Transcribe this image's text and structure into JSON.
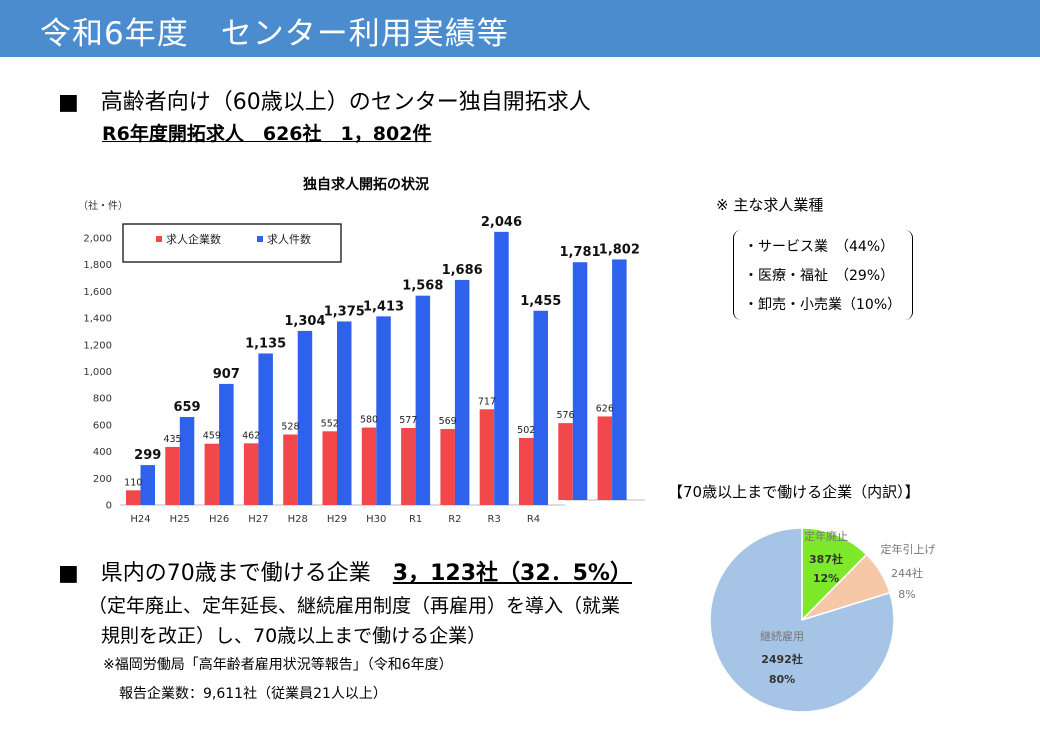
{
  "header": {
    "title": "令和6年度　センター利用実績等"
  },
  "section1": {
    "heading": "■　高齢者向け（60歳以上）のセンター独自開拓求人",
    "subheading": "R6年度開拓求人　626社　1，802件"
  },
  "industries": {
    "title": "※ 主な求人業種",
    "items": [
      "・サービス業　（44%）",
      "・医療・福祉　（29%）",
      "・卸売・小売業（10%）"
    ]
  },
  "section2": {
    "heading_prefix": "■　県内の70歳まで働ける企業　",
    "heading_value": "3，123社（32．5%）",
    "desc_line1": "（定年廃止、定年延長、継続雇用制度（再雇用）を導入（就業",
    "desc_line2": "規則を改正）し、70歳以上まで働ける企業）",
    "note_line1": "※福岡労働局「高年齢者雇用状況等報告」（令和6年度）",
    "note_line2": "報告企業数：9,611社（従業員21人以上）"
  },
  "colors": {
    "header_bg": "#4a8cce",
    "companies_bar": "#f2484b",
    "jobs_bar": "#2f62ec",
    "pie_abolition": "#7ee82a",
    "pie_raise": "#f6c8a8",
    "pie_continued": "#a6c5e6"
  },
  "chart_data": [
    {
      "type": "bar",
      "title": "独自求人開拓の状況",
      "ylabel": "（社・件）",
      "ylim": [
        0,
        2000
      ],
      "yticks": [
        "0",
        "200",
        "400",
        "600",
        "800",
        "1,000",
        "1,200",
        "1,400",
        "1,600",
        "1,800",
        "2,000"
      ],
      "categories": [
        "H24",
        "H25",
        "H26",
        "H27",
        "H28",
        "H29",
        "H30",
        "R1",
        "R2",
        "R3",
        "R4",
        "",
        ""
      ],
      "series": [
        {
          "name": "求人企業数",
          "values": [
            110,
            435,
            459,
            462,
            528,
            552,
            580,
            577,
            569,
            717,
            502,
            576,
            626
          ],
          "labels": [
            "110",
            "435",
            "459",
            "462",
            "528",
            "552",
            "580",
            "577",
            "569",
            "717",
            "502",
            "576",
            "626"
          ]
        },
        {
          "name": "求人件数",
          "values": [
            299,
            659,
            907,
            1135,
            1304,
            1375,
            1413,
            1568,
            1686,
            2046,
            1455,
            1781,
            1802
          ],
          "labels": [
            "299",
            "659",
            "907",
            "1,135",
            "1,304",
            "1,375",
            "1,413",
            "1,568",
            "1,686",
            "2,046",
            "1,455",
            "1,781",
            "1,802"
          ]
        }
      ],
      "grid": false,
      "legend": "top-left"
    },
    {
      "type": "pie",
      "title": "【70歳以上まで働ける企業（内訳）】",
      "slices": [
        {
          "name": "定年廃止",
          "value": 387,
          "value_label": "387社",
          "percent_label": "12%"
        },
        {
          "name": "定年引上げ",
          "value": 244,
          "value_label": "244社",
          "percent_label": "8%"
        },
        {
          "name": "継続雇用",
          "value": 2492,
          "value_label": "2492社",
          "percent_label": "80%"
        }
      ]
    }
  ]
}
